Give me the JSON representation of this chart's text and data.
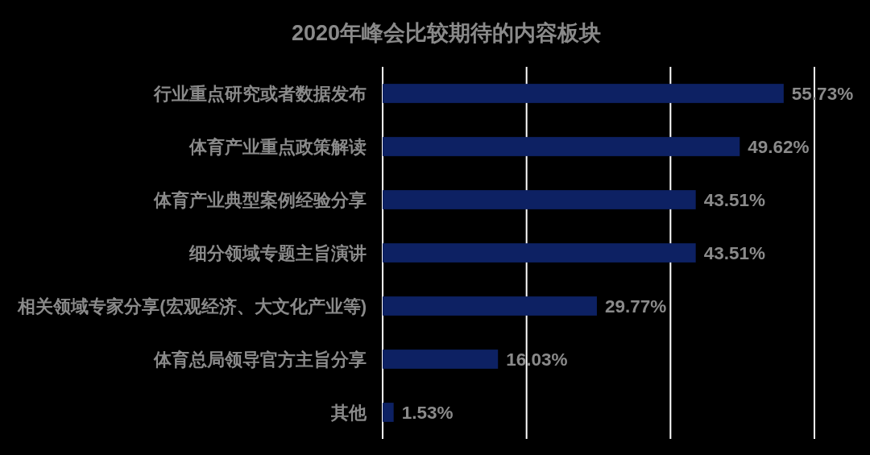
{
  "chart_data": {
    "type": "bar",
    "orientation": "horizontal",
    "title": "2020年峰会比较期待的内容板块",
    "categories": [
      "行业重点研究或者数据发布",
      "体育产业重点政策解读",
      "体育产业典型案例经验分享",
      "细分领域专题主旨演讲",
      "相关领域专家分享(宏观经济、大文化产业等)",
      "体育总局领导官方主旨分享",
      "其他"
    ],
    "values": [
      55.73,
      49.62,
      43.51,
      43.51,
      29.77,
      16.03,
      1.53
    ],
    "value_labels": [
      "55.73%",
      "49.62%",
      "43.51%",
      "43.51%",
      "29.77%",
      "16.03%",
      "1.53%"
    ],
    "color": "#0d2163",
    "xlim": [
      0,
      60
    ],
    "xticks": [
      {
        "value": 0,
        "label": null
      },
      {
        "value": 20,
        "label": null
      },
      {
        "value": 40,
        "label": null
      },
      {
        "value": 60,
        "label": null
      }
    ],
    "grid": "x",
    "tick_labels": "y"
  }
}
